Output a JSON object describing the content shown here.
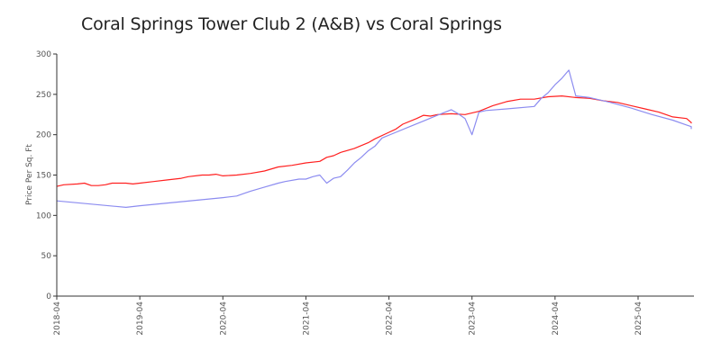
{
  "chart_data": {
    "type": "line",
    "title": "Coral Springs Tower Club 2 (A&B) vs Coral Springs",
    "xlabel": "",
    "ylabel": "Price Per Sq. Ft",
    "ylim": [
      0,
      300
    ],
    "yticks": [
      0,
      50,
      100,
      150,
      200,
      250,
      300
    ],
    "xlim": [
      "2018-04",
      "2025-12"
    ],
    "xticks": [
      "2018-04",
      "2019-04",
      "2020-04",
      "2021-04",
      "2022-04",
      "2023-04",
      "2024-04",
      "2025-04"
    ],
    "grid": false,
    "legend": "none",
    "series": [
      {
        "color": "#ff2020",
        "points": [
          [
            "2018-04",
            136
          ],
          [
            "2018-05",
            138
          ],
          [
            "2018-07",
            139
          ],
          [
            "2018-08",
            140
          ],
          [
            "2018-09",
            137
          ],
          [
            "2018-10",
            137
          ],
          [
            "2018-11",
            138
          ],
          [
            "2018-12",
            140
          ],
          [
            "2019-01",
            140
          ],
          [
            "2019-02",
            140
          ],
          [
            "2019-03",
            139
          ],
          [
            "2019-04",
            140
          ],
          [
            "2019-06",
            142
          ],
          [
            "2019-08",
            144
          ],
          [
            "2019-10",
            146
          ],
          [
            "2019-11",
            148
          ],
          [
            "2020-01",
            150
          ],
          [
            "2020-02",
            150
          ],
          [
            "2020-03",
            151
          ],
          [
            "2020-04",
            149
          ],
          [
            "2020-06",
            150
          ],
          [
            "2020-08",
            152
          ],
          [
            "2020-10",
            155
          ],
          [
            "2020-12",
            160
          ],
          [
            "2021-02",
            162
          ],
          [
            "2021-04",
            165
          ],
          [
            "2021-06",
            167
          ],
          [
            "2021-07",
            172
          ],
          [
            "2021-08",
            174
          ],
          [
            "2021-09",
            178
          ],
          [
            "2021-11",
            183
          ],
          [
            "2022-01",
            190
          ],
          [
            "2022-02",
            195
          ],
          [
            "2022-04",
            203
          ],
          [
            "2022-05",
            207
          ],
          [
            "2022-06",
            213
          ],
          [
            "2022-08",
            220
          ],
          [
            "2022-09",
            224
          ],
          [
            "2022-10",
            223
          ],
          [
            "2022-11",
            225
          ],
          [
            "2023-01",
            226
          ],
          [
            "2023-03",
            225
          ],
          [
            "2023-05",
            229
          ],
          [
            "2023-07",
            236
          ],
          [
            "2023-09",
            241
          ],
          [
            "2023-11",
            244
          ],
          [
            "2024-01",
            244
          ],
          [
            "2024-03",
            247
          ],
          [
            "2024-05",
            248
          ],
          [
            "2024-07",
            246
          ],
          [
            "2024-09",
            245
          ],
          [
            "2024-11",
            242
          ],
          [
            "2025-01",
            240
          ],
          [
            "2025-03",
            236
          ],
          [
            "2025-05",
            232
          ],
          [
            "2025-07",
            228
          ],
          [
            "2025-09",
            222
          ],
          [
            "2025-11",
            220
          ],
          [
            "2025-12",
            215
          ],
          [
            "2026-01",
            214
          ]
        ]
      },
      {
        "color": "#8c8cf0",
        "points": [
          [
            "2018-04",
            118
          ],
          [
            "2019-02",
            110
          ],
          [
            "2019-04",
            112
          ],
          [
            "2019-10",
            117
          ],
          [
            "2020-04",
            122
          ],
          [
            "2020-06",
            124
          ],
          [
            "2020-07",
            127
          ],
          [
            "2020-08",
            130
          ],
          [
            "2020-10",
            135
          ],
          [
            "2020-12",
            140
          ],
          [
            "2021-01",
            142
          ],
          [
            "2021-03",
            145
          ],
          [
            "2021-04",
            145
          ],
          [
            "2021-05",
            148
          ],
          [
            "2021-06",
            150
          ],
          [
            "2021-07",
            140
          ],
          [
            "2021-08",
            146
          ],
          [
            "2021-09",
            148
          ],
          [
            "2021-10",
            156
          ],
          [
            "2021-11",
            165
          ],
          [
            "2021-12",
            172
          ],
          [
            "2022-01",
            180
          ],
          [
            "2022-02",
            186
          ],
          [
            "2022-03",
            196
          ],
          [
            "2022-05",
            203
          ],
          [
            "2022-07",
            210
          ],
          [
            "2022-09",
            217
          ],
          [
            "2022-11",
            224
          ],
          [
            "2023-01",
            231
          ],
          [
            "2023-02",
            226
          ],
          [
            "2023-03",
            220
          ],
          [
            "2023-04",
            200
          ],
          [
            "2023-05",
            228
          ],
          [
            "2023-06",
            230
          ],
          [
            "2023-09",
            232
          ],
          [
            "2024-01",
            235
          ],
          [
            "2024-02",
            245
          ],
          [
            "2024-03",
            252
          ],
          [
            "2024-04",
            262
          ],
          [
            "2024-05",
            270
          ],
          [
            "2024-06",
            280
          ],
          [
            "2024-07",
            248
          ],
          [
            "2024-09",
            246
          ],
          [
            "2024-12",
            240
          ],
          [
            "2025-03",
            233
          ],
          [
            "2025-06",
            225
          ],
          [
            "2025-09",
            218
          ],
          [
            "2025-11",
            212
          ],
          [
            "2026-01",
            210
          ],
          [
            "2026-03",
            207
          ]
        ]
      }
    ]
  }
}
